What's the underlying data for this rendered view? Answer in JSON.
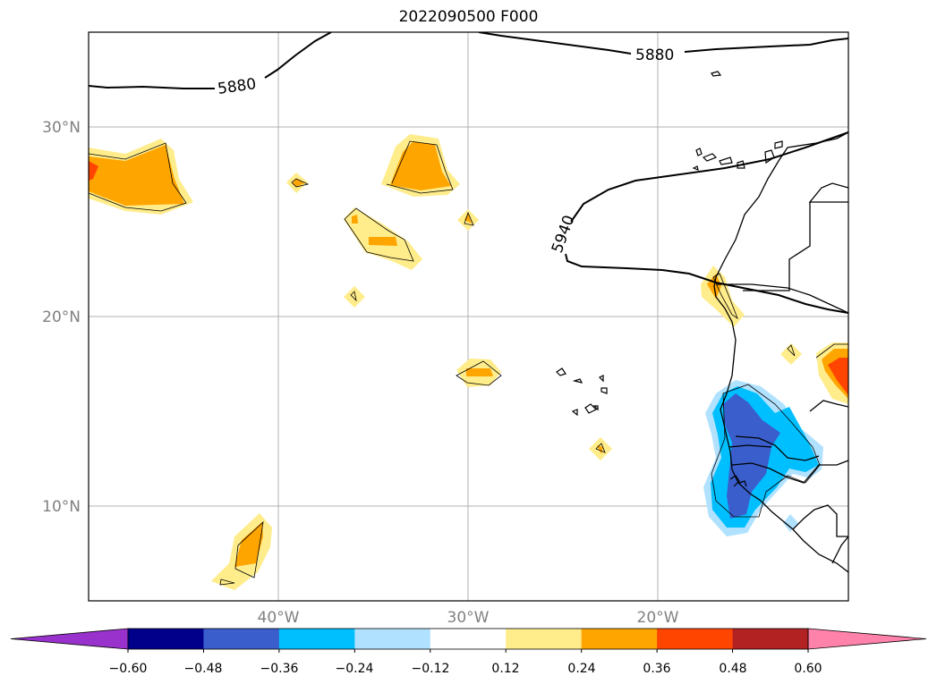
{
  "title": "2022090500 F000",
  "map": {
    "lat_labels": [
      "30°N",
      "20°N",
      "10°N"
    ],
    "lon_labels": [
      "40°W",
      "30°W",
      "20°W"
    ],
    "contour_labels": [
      "5880",
      "5880",
      "5940"
    ]
  },
  "colorbar": {
    "tick_labels": [
      "−0.60",
      "−0.48",
      "−0.36",
      "−0.24",
      "−0.12",
      "0.12",
      "0.24",
      "0.36",
      "0.48",
      "0.60"
    ],
    "colors": [
      "#9932cc",
      "#00008b",
      "#3a5fcd",
      "#00bfff",
      "#b0e2ff",
      "#ffffff",
      "#ffec8b",
      "#ffa500",
      "#ff4500",
      "#b22222",
      "#ff82ab"
    ]
  }
}
